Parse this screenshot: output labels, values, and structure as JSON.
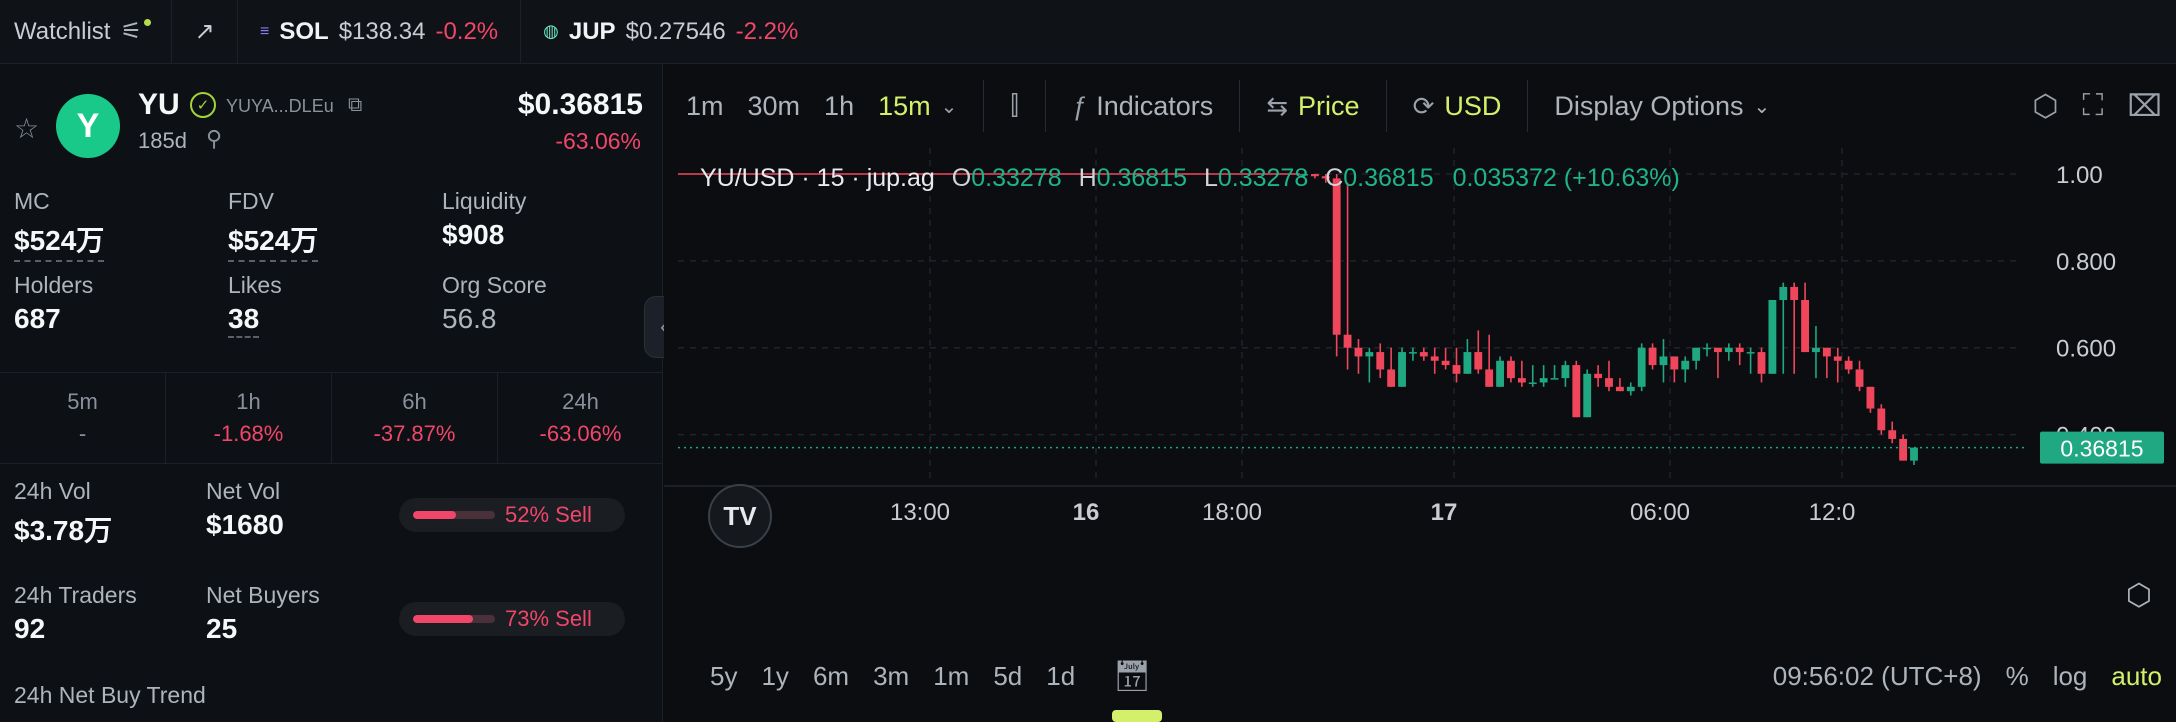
{
  "topbar": {
    "watchlist_label": "Watchlist",
    "assets": [
      {
        "symbol": "SOL",
        "price": "$138.34",
        "change": "-0.2%"
      },
      {
        "symbol": "JUP",
        "price": "$0.27546",
        "change": "-2.2%"
      }
    ]
  },
  "token": {
    "symbol": "YU",
    "address_short": "YUYA...DLEu",
    "age": "185d",
    "price": "$0.36815",
    "change_24h": "-63.06%",
    "logo_letter": "Y"
  },
  "stats": [
    {
      "label": "MC",
      "value": "$524万"
    },
    {
      "label": "FDV",
      "value": "$524万"
    },
    {
      "label": "Liquidity",
      "value": "$908"
    },
    {
      "label": "Holders",
      "value": "687"
    },
    {
      "label": "Likes",
      "value": "38"
    },
    {
      "label": "Org Score",
      "value": "56.8"
    }
  ],
  "timeframes": [
    {
      "label": "5m",
      "value": "-"
    },
    {
      "label": "1h",
      "value": "-1.68%"
    },
    {
      "label": "6h",
      "value": "-37.87%"
    },
    {
      "label": "24h",
      "value": "-63.06%"
    }
  ],
  "volume": {
    "vol_label": "24h Vol",
    "vol_value": "$3.78万",
    "netvol_label": "Net Vol",
    "netvol_value": "$1680",
    "vol_sell_pct": 52,
    "vol_sell_text": "52% Sell",
    "traders_label": "24h Traders",
    "traders_value": "92",
    "netbuyers_label": "Net Buyers",
    "netbuyers_value": "25",
    "traders_sell_pct": 73,
    "traders_sell_text": "73% Sell",
    "trend_label": "24h Net Buy Trend"
  },
  "toolbar": {
    "intervals": [
      "1m",
      "30m",
      "1h",
      "15m"
    ],
    "selected_interval": "15m",
    "indicators_label": "Indicators",
    "price_label": "Price",
    "usd_label": "USD",
    "display_label": "Display Options"
  },
  "legend": {
    "title": "YU/USD · 15 · jup.ag",
    "o": "0.33278",
    "h": "0.36815",
    "l": "0.33278",
    "c": "0.36815",
    "change": "0.035372 (+10.63%)"
  },
  "bottombar": {
    "ranges": [
      "5y",
      "1y",
      "6m",
      "3m",
      "1m",
      "5d",
      "1d"
    ],
    "time": "09:56:02 (UTC+8)",
    "pct": "%",
    "log": "log",
    "auto": "auto"
  },
  "chart_data": {
    "type": "candlestick",
    "title": "YU/USD · 15 · jup.ag",
    "y_ticks": [
      "1.00",
      "0.800",
      "0.600",
      "0.400"
    ],
    "x_ticks": [
      "13:00",
      "16",
      "18:00",
      "17",
      "06:00",
      "12:0"
    ],
    "ylim": [
      0.3,
      1.06
    ],
    "last_price_label": "0.36815",
    "candles": [
      {
        "o": 1.0,
        "h": 1.0,
        "l": 0.99,
        "c": 1.0
      },
      {
        "o": 1.0,
        "h": 1.0,
        "l": 0.99,
        "c": 0.995
      },
      {
        "o": 0.995,
        "h": 1.0,
        "l": 0.98,
        "c": 0.99
      },
      {
        "o": 0.99,
        "h": 1.0,
        "l": 0.58,
        "c": 0.63
      },
      {
        "o": 0.63,
        "h": 0.98,
        "l": 0.55,
        "c": 0.6
      },
      {
        "o": 0.6,
        "h": 0.62,
        "l": 0.54,
        "c": 0.58
      },
      {
        "o": 0.58,
        "h": 0.6,
        "l": 0.52,
        "c": 0.59
      },
      {
        "o": 0.59,
        "h": 0.61,
        "l": 0.53,
        "c": 0.55
      },
      {
        "o": 0.55,
        "h": 0.6,
        "l": 0.51,
        "c": 0.51
      },
      {
        "o": 0.51,
        "h": 0.6,
        "l": 0.51,
        "c": 0.59
      },
      {
        "o": 0.59,
        "h": 0.6,
        "l": 0.57,
        "c": 0.59
      },
      {
        "o": 0.59,
        "h": 0.6,
        "l": 0.57,
        "c": 0.58
      },
      {
        "o": 0.58,
        "h": 0.6,
        "l": 0.54,
        "c": 0.57
      },
      {
        "o": 0.57,
        "h": 0.6,
        "l": 0.55,
        "c": 0.56
      },
      {
        "o": 0.56,
        "h": 0.6,
        "l": 0.52,
        "c": 0.54
      },
      {
        "o": 0.54,
        "h": 0.62,
        "l": 0.54,
        "c": 0.59
      },
      {
        "o": 0.59,
        "h": 0.64,
        "l": 0.54,
        "c": 0.55
      },
      {
        "o": 0.55,
        "h": 0.63,
        "l": 0.51,
        "c": 0.51
      },
      {
        "o": 0.51,
        "h": 0.58,
        "l": 0.51,
        "c": 0.57
      },
      {
        "o": 0.57,
        "h": 0.58,
        "l": 0.52,
        "c": 0.53
      },
      {
        "o": 0.53,
        "h": 0.57,
        "l": 0.51,
        "c": 0.52
      },
      {
        "o": 0.52,
        "h": 0.56,
        "l": 0.51,
        "c": 0.52
      },
      {
        "o": 0.52,
        "h": 0.56,
        "l": 0.51,
        "c": 0.53
      },
      {
        "o": 0.53,
        "h": 0.56,
        "l": 0.53,
        "c": 0.53
      },
      {
        "o": 0.53,
        "h": 0.57,
        "l": 0.51,
        "c": 0.56
      },
      {
        "o": 0.56,
        "h": 0.57,
        "l": 0.44,
        "c": 0.44
      },
      {
        "o": 0.44,
        "h": 0.55,
        "l": 0.44,
        "c": 0.54
      },
      {
        "o": 0.54,
        "h": 0.56,
        "l": 0.51,
        "c": 0.53
      },
      {
        "o": 0.53,
        "h": 0.57,
        "l": 0.5,
        "c": 0.51
      },
      {
        "o": 0.51,
        "h": 0.53,
        "l": 0.5,
        "c": 0.5
      },
      {
        "o": 0.5,
        "h": 0.52,
        "l": 0.49,
        "c": 0.51
      },
      {
        "o": 0.51,
        "h": 0.61,
        "l": 0.5,
        "c": 0.6
      },
      {
        "o": 0.6,
        "h": 0.61,
        "l": 0.55,
        "c": 0.56
      },
      {
        "o": 0.56,
        "h": 0.62,
        "l": 0.52,
        "c": 0.58
      },
      {
        "o": 0.58,
        "h": 0.58,
        "l": 0.52,
        "c": 0.55
      },
      {
        "o": 0.55,
        "h": 0.58,
        "l": 0.52,
        "c": 0.57
      },
      {
        "o": 0.57,
        "h": 0.6,
        "l": 0.55,
        "c": 0.6
      },
      {
        "o": 0.6,
        "h": 0.61,
        "l": 0.58,
        "c": 0.6
      },
      {
        "o": 0.6,
        "h": 0.6,
        "l": 0.53,
        "c": 0.59
      },
      {
        "o": 0.59,
        "h": 0.61,
        "l": 0.57,
        "c": 0.6
      },
      {
        "o": 0.6,
        "h": 0.61,
        "l": 0.56,
        "c": 0.59
      },
      {
        "o": 0.59,
        "h": 0.6,
        "l": 0.54,
        "c": 0.59
      },
      {
        "o": 0.59,
        "h": 0.6,
        "l": 0.52,
        "c": 0.54
      },
      {
        "o": 0.54,
        "h": 0.71,
        "l": 0.54,
        "c": 0.71
      },
      {
        "o": 0.71,
        "h": 0.75,
        "l": 0.54,
        "c": 0.74
      },
      {
        "o": 0.74,
        "h": 0.75,
        "l": 0.54,
        "c": 0.71
      },
      {
        "o": 0.71,
        "h": 0.75,
        "l": 0.59,
        "c": 0.59
      },
      {
        "o": 0.59,
        "h": 0.65,
        "l": 0.53,
        "c": 0.6
      },
      {
        "o": 0.6,
        "h": 0.6,
        "l": 0.53,
        "c": 0.58
      },
      {
        "o": 0.58,
        "h": 0.6,
        "l": 0.52,
        "c": 0.57
      },
      {
        "o": 0.57,
        "h": 0.58,
        "l": 0.54,
        "c": 0.55
      },
      {
        "o": 0.55,
        "h": 0.57,
        "l": 0.5,
        "c": 0.51
      },
      {
        "o": 0.51,
        "h": 0.51,
        "l": 0.45,
        "c": 0.46
      },
      {
        "o": 0.46,
        "h": 0.47,
        "l": 0.4,
        "c": 0.41
      },
      {
        "o": 0.41,
        "h": 0.43,
        "l": 0.38,
        "c": 0.39
      },
      {
        "o": 0.39,
        "h": 0.4,
        "l": 0.34,
        "c": 0.34
      },
      {
        "o": 0.34,
        "h": 0.37,
        "l": 0.33,
        "c": 0.37
      }
    ],
    "colors": {
      "up": "#1fa882",
      "down": "#f0465c",
      "grid": "#1f242b",
      "bg": "#0b0d10"
    }
  }
}
